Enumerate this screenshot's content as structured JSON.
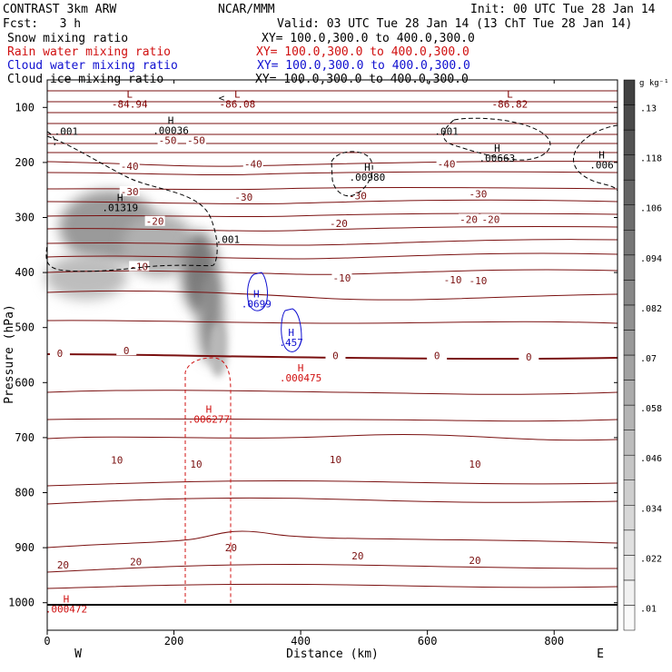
{
  "header": {
    "product": "CONTRAST 3km ARW",
    "org": "NCAR/MMM",
    "init": "Init: 00 UTC Tue 28 Jan 14",
    "fcst": "Fcst:   3 h",
    "valid": "Valid: 03 UTC Tue 28 Jan 14 (13 ChT Tue 28 Jan 14)",
    "fields": [
      {
        "label": "Snow mixing ratio",
        "xy": "XY= 100.0,300.0 to 400.0,300.0",
        "color": "#000000"
      },
      {
        "label": "Rain water mixing ratio",
        "xy": "XY= 100.0,300.0 to 400.0,300.0",
        "color": "#d01010"
      },
      {
        "label": "Cloud water mixing ratio",
        "xy": "XY= 100.0,300.0 to 400.0,300.0",
        "color": "#1010d0"
      },
      {
        "label": "Cloud ice mixing ratio",
        "xy": "XY= 100.0,300.0 to 400.0,300.0",
        "color": "#000000"
      }
    ]
  },
  "chart_data": {
    "type": "cross-section contour",
    "xlabel": "Distance (km)",
    "ylabel": "Pressure (hPa)",
    "xlim": [
      0,
      900
    ],
    "ylim": [
      1050,
      50
    ],
    "x_ticks": [
      0,
      200,
      400,
      600,
      800
    ],
    "y_ticks": [
      100,
      200,
      300,
      400,
      500,
      600,
      700,
      800,
      900,
      1000
    ],
    "x_ends": {
      "left": "W",
      "right": "E"
    },
    "colorbar": {
      "unit": "g kg⁻¹",
      "levels": [
        ".01",
        ".022",
        ".034",
        ".046",
        ".058",
        ".07",
        ".082",
        ".094",
        ".106",
        ".118",
        ".13"
      ]
    },
    "temperature_labels": [
      {
        "x": 130,
        "p": 207,
        "text": "-40"
      },
      {
        "x": 325,
        "p": 203,
        "text": "-40"
      },
      {
        "x": 630,
        "p": 203,
        "text": "-40"
      },
      {
        "x": 190,
        "p": 160,
        "text": "-50"
      },
      {
        "x": 235,
        "p": 160,
        "text": "-50"
      },
      {
        "x": 130,
        "p": 253,
        "text": "-30"
      },
      {
        "x": 310,
        "p": 263,
        "text": "-30"
      },
      {
        "x": 490,
        "p": 260,
        "text": "-30"
      },
      {
        "x": 680,
        "p": 257,
        "text": "-30"
      },
      {
        "x": 170,
        "p": 307,
        "text": "-20"
      },
      {
        "x": 460,
        "p": 311,
        "text": "-20"
      },
      {
        "x": 665,
        "p": 303,
        "text": "-20"
      },
      {
        "x": 700,
        "p": 303,
        "text": "-20"
      },
      {
        "x": 145,
        "p": 389,
        "text": "-10"
      },
      {
        "x": 465,
        "p": 410,
        "text": "-10"
      },
      {
        "x": 640,
        "p": 413,
        "text": "-10"
      },
      {
        "x": 680,
        "p": 415,
        "text": "-10"
      },
      {
        "x": 20,
        "p": 547,
        "text": "0"
      },
      {
        "x": 125,
        "p": 542,
        "text": "0"
      },
      {
        "x": 455,
        "p": 551,
        "text": "0"
      },
      {
        "x": 615,
        "p": 551,
        "text": "0"
      },
      {
        "x": 760,
        "p": 553,
        "text": "0"
      },
      {
        "x": 110,
        "p": 741,
        "text": "10"
      },
      {
        "x": 235,
        "p": 748,
        "text": "10"
      },
      {
        "x": 455,
        "p": 740,
        "text": "10"
      },
      {
        "x": 675,
        "p": 748,
        "text": "10"
      },
      {
        "x": 25,
        "p": 931,
        "text": "20"
      },
      {
        "x": 140,
        "p": 925,
        "text": "20"
      },
      {
        "x": 290,
        "p": 900,
        "text": "20"
      },
      {
        "x": 490,
        "p": 915,
        "text": "20"
      },
      {
        "x": 675,
        "p": 923,
        "text": "20"
      }
    ],
    "low_high_labels": [
      {
        "kind": "L",
        "x": 130,
        "p": 82,
        "value": "-84.94",
        "color": "#800000"
      },
      {
        "kind": "L",
        "x": 300,
        "p": 82,
        "value": "-86.08",
        "color": "#800000"
      },
      {
        "kind": "L",
        "x": 730,
        "p": 82,
        "value": "-86.82",
        "color": "#800000"
      },
      {
        "kind": "H",
        "x": 195,
        "p": 130,
        "value": ".00036",
        "color": "#000000"
      },
      {
        "kind": "H",
        "x": 115,
        "p": 270,
        "value": ".01319",
        "color": "#000000"
      },
      {
        "kind": "H",
        "x": 505,
        "p": 215,
        "value": ".00980",
        "color": "#000000"
      },
      {
        "kind": "H",
        "x": 710,
        "p": 180,
        "value": ".00663",
        "color": "#000000"
      },
      {
        "kind": "H",
        "x": 875,
        "p": 193,
        "value": ".006",
        "color": "#000000"
      },
      {
        "kind": "H",
        "x": 330,
        "p": 445,
        "value": ".0699",
        "color": "#1010d0"
      },
      {
        "kind": "H",
        "x": 385,
        "p": 515,
        "value": ".457",
        "color": "#1010d0"
      },
      {
        "kind": "H",
        "x": 400,
        "p": 580,
        "value": ".000475",
        "color": "#d01010"
      },
      {
        "kind": "H",
        "x": 255,
        "p": 655,
        "value": ".006277",
        "color": "#d01010"
      },
      {
        "kind": "H",
        "x": 30,
        "p": 1000,
        "value": ".000472",
        "color": "#d01010"
      }
    ],
    "other_labels": [
      {
        "x": 30,
        "p": 143,
        "text": ".001",
        "color": "#000000"
      },
      {
        "x": 285,
        "p": 340,
        "text": ".001",
        "color": "#000000"
      },
      {
        "x": 630,
        "p": 143,
        "text": ".001",
        "color": "#000000"
      },
      {
        "x": 275,
        "p": 82,
        "text": "<",
        "color": "#000000"
      }
    ]
  }
}
